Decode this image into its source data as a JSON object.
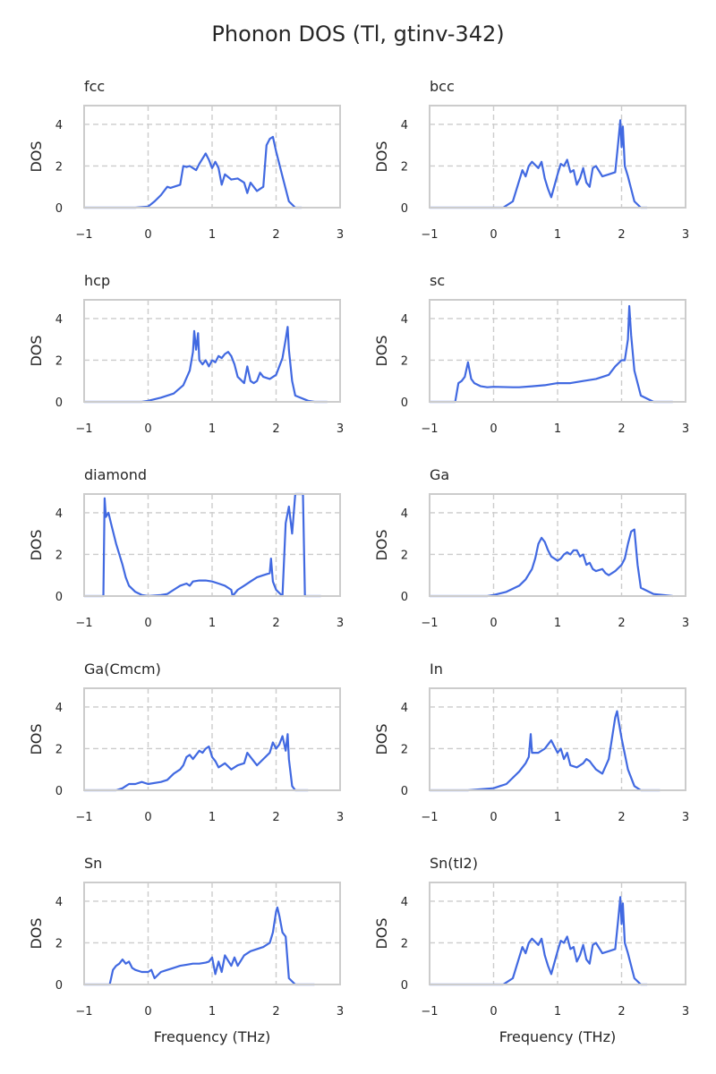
{
  "title": "Phonon DOS (Tl, gtinv-342)",
  "colors": {
    "line": "#4169e1",
    "frame": "#cccccc",
    "grid": "#cccccc",
    "text": "#262626"
  },
  "chart_data": {
    "type": "line",
    "title": "Phonon DOS (Tl, gtinv-342)",
    "layout": "5x2 grid",
    "xlabel": "Frequency (THz)",
    "ylabel": "DOS",
    "xlim": [
      -1,
      3
    ],
    "ylim": [
      0,
      4.9
    ],
    "xticks": [
      "−1",
      "0",
      "1",
      "2",
      "3"
    ],
    "yticks": [
      "0",
      "2",
      "4"
    ],
    "grid": true,
    "panels": [
      {
        "title": "fcc",
        "x": [
          -1,
          -0.2,
          0,
          0.1,
          0.2,
          0.3,
          0.35,
          0.5,
          0.55,
          0.6,
          0.65,
          0.75,
          0.8,
          0.9,
          0.95,
          1.0,
          1.05,
          1.1,
          1.15,
          1.2,
          1.3,
          1.4,
          1.5,
          1.55,
          1.6,
          1.7,
          1.75,
          1.8,
          1.85,
          1.9,
          1.95,
          2.0,
          2.1,
          2.2,
          2.3,
          2.4
        ],
        "y": [
          0,
          0,
          0.05,
          0.3,
          0.6,
          1.0,
          0.95,
          1.1,
          2.0,
          1.95,
          2.0,
          1.8,
          2.1,
          2.6,
          2.3,
          1.9,
          2.2,
          1.9,
          1.1,
          1.6,
          1.35,
          1.4,
          1.2,
          0.7,
          1.2,
          0.8,
          0.9,
          1.0,
          3.0,
          3.3,
          3.4,
          2.7,
          1.5,
          0.3,
          0,
          0
        ]
      },
      {
        "title": "bcc",
        "x": [
          -1,
          0.15,
          0.2,
          0.3,
          0.4,
          0.45,
          0.5,
          0.55,
          0.6,
          0.7,
          0.75,
          0.8,
          0.85,
          0.9,
          1.0,
          1.05,
          1.1,
          1.15,
          1.2,
          1.25,
          1.3,
          1.35,
          1.4,
          1.45,
          1.5,
          1.55,
          1.6,
          1.7,
          1.8,
          1.9,
          1.95,
          1.98,
          2.0,
          2.02,
          2.05,
          2.1,
          2.2,
          2.3,
          2.4
        ],
        "y": [
          0,
          0,
          0.1,
          0.3,
          1.3,
          1.8,
          1.5,
          2.0,
          2.2,
          1.9,
          2.2,
          1.4,
          0.9,
          0.5,
          1.6,
          2.1,
          2.0,
          2.3,
          1.7,
          1.8,
          1.1,
          1.4,
          1.9,
          1.2,
          1.0,
          1.9,
          2.0,
          1.5,
          1.6,
          1.7,
          3.2,
          4.2,
          2.9,
          3.9,
          2.0,
          1.5,
          0.3,
          0,
          0
        ]
      },
      {
        "title": "hcp",
        "x": [
          -1,
          -0.1,
          0,
          0.2,
          0.4,
          0.55,
          0.65,
          0.7,
          0.72,
          0.75,
          0.78,
          0.8,
          0.85,
          0.9,
          0.95,
          1.0,
          1.05,
          1.1,
          1.15,
          1.2,
          1.25,
          1.3,
          1.35,
          1.4,
          1.5,
          1.55,
          1.6,
          1.65,
          1.7,
          1.75,
          1.8,
          1.9,
          2.0,
          2.1,
          2.15,
          2.18,
          2.2,
          2.25,
          2.3,
          2.5,
          2.6,
          2.8
        ],
        "y": [
          0,
          0,
          0.05,
          0.2,
          0.4,
          0.8,
          1.5,
          2.4,
          3.4,
          2.5,
          3.3,
          2.0,
          1.8,
          2.0,
          1.7,
          2.0,
          1.9,
          2.2,
          2.1,
          2.3,
          2.4,
          2.2,
          1.8,
          1.2,
          0.9,
          1.7,
          1.0,
          0.9,
          1.0,
          1.4,
          1.2,
          1.1,
          1.3,
          2.1,
          3.0,
          3.6,
          2.5,
          1.0,
          0.3,
          0.05,
          0,
          0
        ]
      },
      {
        "title": "sc",
        "x": [
          -1,
          -0.6,
          -0.55,
          -0.5,
          -0.45,
          -0.4,
          -0.35,
          -0.3,
          -0.2,
          -0.1,
          0,
          0.3,
          0.4,
          0.6,
          0.8,
          0.9,
          1.0,
          1.2,
          1.4,
          1.6,
          1.8,
          1.9,
          2.0,
          2.05,
          2.1,
          2.12,
          2.15,
          2.2,
          2.3,
          2.5,
          2.6,
          2.8
        ],
        "y": [
          0,
          0,
          0.9,
          1.0,
          1.2,
          1.9,
          1.1,
          0.9,
          0.75,
          0.7,
          0.72,
          0.7,
          0.7,
          0.75,
          0.8,
          0.85,
          0.9,
          0.9,
          1.0,
          1.1,
          1.3,
          1.7,
          2.0,
          2.0,
          3.0,
          4.6,
          3.2,
          1.5,
          0.3,
          0,
          0,
          0
        ]
      },
      {
        "title": "diamond",
        "x": [
          -1,
          -0.7,
          -0.68,
          -0.66,
          -0.62,
          -0.58,
          -0.5,
          -0.4,
          -0.35,
          -0.3,
          -0.2,
          -0.1,
          0,
          0.2,
          0.3,
          0.4,
          0.5,
          0.6,
          0.65,
          0.7,
          0.8,
          0.9,
          1.0,
          1.1,
          1.2,
          1.3,
          1.32,
          1.4,
          1.5,
          1.6,
          1.7,
          1.8,
          1.9,
          1.92,
          1.95,
          2.0,
          2.1,
          2.15,
          2.2,
          2.25,
          2.3,
          2.35,
          2.4,
          2.42,
          2.45,
          2.5,
          2.7
        ],
        "y": [
          0,
          0,
          4.7,
          3.8,
          4.0,
          3.5,
          2.5,
          1.5,
          0.9,
          0.5,
          0.2,
          0.05,
          0,
          0.05,
          0.1,
          0.3,
          0.5,
          0.6,
          0.5,
          0.7,
          0.75,
          0.75,
          0.7,
          0.6,
          0.5,
          0.3,
          0,
          0.3,
          0.5,
          0.7,
          0.9,
          1.0,
          1.1,
          1.8,
          0.7,
          0.3,
          0,
          3.5,
          4.3,
          3.0,
          4.9,
          4.9,
          4.9,
          4.9,
          0,
          0,
          0
        ]
      },
      {
        "title": "Ga",
        "x": [
          -1,
          -0.1,
          0,
          0.2,
          0.4,
          0.5,
          0.6,
          0.65,
          0.7,
          0.75,
          0.8,
          0.85,
          0.9,
          0.95,
          1.0,
          1.05,
          1.1,
          1.15,
          1.2,
          1.25,
          1.3,
          1.35,
          1.4,
          1.45,
          1.5,
          1.55,
          1.6,
          1.7,
          1.75,
          1.8,
          1.9,
          2.0,
          2.05,
          2.1,
          2.15,
          2.2,
          2.25,
          2.3,
          2.5,
          2.8
        ],
        "y": [
          0,
          0,
          0.05,
          0.2,
          0.5,
          0.8,
          1.3,
          1.8,
          2.5,
          2.8,
          2.6,
          2.2,
          1.9,
          1.8,
          1.7,
          1.8,
          2.0,
          2.1,
          2.0,
          2.2,
          2.2,
          1.9,
          2.0,
          1.5,
          1.6,
          1.3,
          1.2,
          1.3,
          1.1,
          1.0,
          1.2,
          1.5,
          1.8,
          2.5,
          3.1,
          3.2,
          1.5,
          0.4,
          0.1,
          0
        ]
      },
      {
        "title": "Ga(Cmcm)",
        "x": [
          -1,
          -0.5,
          -0.4,
          -0.35,
          -0.3,
          -0.2,
          -0.1,
          0,
          0.2,
          0.3,
          0.4,
          0.5,
          0.55,
          0.6,
          0.65,
          0.7,
          0.8,
          0.85,
          0.9,
          0.95,
          1.0,
          1.05,
          1.1,
          1.2,
          1.3,
          1.4,
          1.5,
          1.55,
          1.6,
          1.7,
          1.8,
          1.9,
          1.95,
          2.0,
          2.05,
          2.1,
          2.15,
          2.18,
          2.2,
          2.25,
          2.3,
          2.5
        ],
        "y": [
          0,
          0,
          0.1,
          0.2,
          0.3,
          0.3,
          0.4,
          0.3,
          0.4,
          0.5,
          0.8,
          1.0,
          1.2,
          1.6,
          1.7,
          1.5,
          1.9,
          1.8,
          2.0,
          2.1,
          1.6,
          1.4,
          1.1,
          1.3,
          1.0,
          1.2,
          1.3,
          1.8,
          1.6,
          1.2,
          1.5,
          1.8,
          2.3,
          2.0,
          2.2,
          2.6,
          1.9,
          2.7,
          1.5,
          0.2,
          0,
          0
        ]
      },
      {
        "title": "In",
        "x": [
          -1,
          -0.4,
          -0.2,
          0,
          0.1,
          0.2,
          0.3,
          0.4,
          0.5,
          0.55,
          0.58,
          0.6,
          0.7,
          0.8,
          0.85,
          0.9,
          1.0,
          1.05,
          1.1,
          1.15,
          1.2,
          1.3,
          1.4,
          1.45,
          1.5,
          1.55,
          1.6,
          1.7,
          1.8,
          1.85,
          1.9,
          1.93,
          1.95,
          2.0,
          2.1,
          2.2,
          2.3,
          2.6
        ],
        "y": [
          0,
          0,
          0.05,
          0.1,
          0.2,
          0.3,
          0.6,
          0.9,
          1.3,
          1.6,
          2.7,
          1.8,
          1.8,
          2.0,
          2.2,
          2.4,
          1.8,
          2.0,
          1.5,
          1.8,
          1.2,
          1.1,
          1.3,
          1.5,
          1.4,
          1.2,
          1.0,
          0.8,
          1.5,
          2.5,
          3.5,
          3.8,
          3.4,
          2.5,
          1.0,
          0.2,
          0,
          0
        ]
      },
      {
        "title": "Sn",
        "x": [
          -1,
          -0.6,
          -0.55,
          -0.5,
          -0.45,
          -0.4,
          -0.35,
          -0.3,
          -0.25,
          -0.2,
          -0.1,
          0,
          0.05,
          0.1,
          0.2,
          0.3,
          0.4,
          0.5,
          0.6,
          0.7,
          0.8,
          0.9,
          0.95,
          1.0,
          1.05,
          1.1,
          1.15,
          1.2,
          1.3,
          1.35,
          1.4,
          1.5,
          1.6,
          1.7,
          1.8,
          1.9,
          1.95,
          2.0,
          2.02,
          2.05,
          2.1,
          2.15,
          2.2,
          2.3,
          2.6
        ],
        "y": [
          0,
          0,
          0.7,
          0.9,
          1.0,
          1.2,
          1.0,
          1.1,
          0.8,
          0.7,
          0.6,
          0.6,
          0.7,
          0.3,
          0.6,
          0.7,
          0.8,
          0.9,
          0.95,
          1.0,
          1.0,
          1.05,
          1.1,
          1.3,
          0.5,
          1.1,
          0.6,
          1.4,
          0.9,
          1.3,
          0.9,
          1.4,
          1.6,
          1.7,
          1.8,
          2.0,
          2.5,
          3.5,
          3.7,
          3.3,
          2.5,
          2.3,
          0.3,
          0,
          0
        ]
      },
      {
        "title": "Sn(tI2)",
        "x": [
          -1,
          0.15,
          0.2,
          0.3,
          0.4,
          0.45,
          0.5,
          0.55,
          0.6,
          0.7,
          0.75,
          0.8,
          0.85,
          0.9,
          1.0,
          1.05,
          1.1,
          1.15,
          1.2,
          1.25,
          1.3,
          1.35,
          1.4,
          1.45,
          1.5,
          1.55,
          1.6,
          1.7,
          1.8,
          1.9,
          1.95,
          1.98,
          2.0,
          2.02,
          2.05,
          2.1,
          2.2,
          2.3,
          2.4
        ],
        "y": [
          0,
          0,
          0.1,
          0.3,
          1.3,
          1.8,
          1.5,
          2.0,
          2.2,
          1.9,
          2.2,
          1.4,
          0.9,
          0.5,
          1.6,
          2.1,
          2.0,
          2.3,
          1.7,
          1.8,
          1.1,
          1.4,
          1.9,
          1.2,
          1.0,
          1.9,
          2.0,
          1.5,
          1.6,
          1.7,
          3.2,
          4.2,
          2.9,
          3.9,
          2.0,
          1.5,
          0.3,
          0,
          0
        ]
      }
    ]
  }
}
